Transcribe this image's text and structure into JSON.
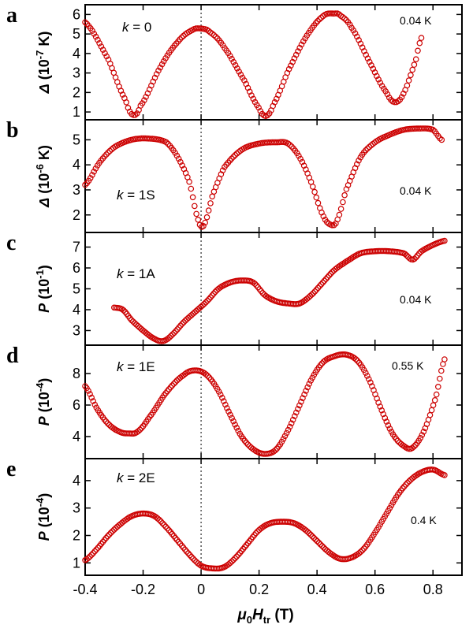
{
  "figure": {
    "x_axis_label": {
      "mu": "μ",
      "zero": "0",
      "H": "H",
      "sub": "tr",
      "unit": " (T)"
    }
  },
  "chart_data": [
    {
      "type": "scatter",
      "panel_letter": "a",
      "k_label": {
        "k": "k",
        "rest": " = 0"
      },
      "temperature": "0.04 K",
      "y_label": {
        "symbol": "Δ",
        "prefix": " (10",
        "exp": "-7",
        "suffix": " K)",
        "italic": true
      },
      "ylim": [
        0.6,
        6.5
      ],
      "yticks": [
        1,
        2,
        3,
        4,
        5,
        6
      ],
      "xlim": [
        -0.4,
        0.9
      ],
      "marker_color": "#cc0000",
      "series": [
        {
          "x": [
            -0.4,
            -0.32,
            -0.26,
            -0.235,
            -0.21,
            -0.14,
            -0.08,
            -0.03,
            0.0,
            0.03,
            0.08,
            0.15,
            0.2,
            0.225,
            0.25,
            0.3,
            0.36,
            0.42,
            0.46,
            0.48,
            0.52,
            0.58,
            0.64,
            0.67,
            0.7,
            0.74,
            0.76
          ],
          "y": [
            5.6,
            3.7,
            1.6,
            0.85,
            1.3,
            3.3,
            4.6,
            5.2,
            5.28,
            5.1,
            4.3,
            2.6,
            1.2,
            0.8,
            1.4,
            3.1,
            4.8,
            5.9,
            6.05,
            5.95,
            5.3,
            3.6,
            2.0,
            1.5,
            2.0,
            3.6,
            4.8
          ]
        }
      ]
    },
    {
      "type": "scatter",
      "panel_letter": "b",
      "k_label": {
        "k": "k",
        "rest": " = 1S"
      },
      "temperature": "0.04 K",
      "y_label": {
        "symbol": "Δ",
        "prefix": " (10",
        "exp": "-6",
        "suffix": " K)",
        "italic": true
      },
      "ylim": [
        1.3,
        5.8
      ],
      "yticks": [
        2,
        3,
        4,
        5
      ],
      "xlim": [
        -0.4,
        0.9
      ],
      "marker_color": "#cc0000",
      "series": [
        {
          "x": [
            -0.4,
            -0.35,
            -0.3,
            -0.24,
            -0.18,
            -0.12,
            -0.08,
            -0.04,
            -0.01,
            0.01,
            0.04,
            0.08,
            0.14,
            0.2,
            0.26,
            0.3,
            0.34,
            0.38,
            0.42,
            0.45,
            0.47,
            0.5,
            0.55,
            0.6,
            0.65,
            0.7,
            0.75,
            0.8,
            0.83
          ],
          "y": [
            3.2,
            4.1,
            4.7,
            5.0,
            5.05,
            4.9,
            4.3,
            3.3,
            1.8,
            1.6,
            2.8,
            3.9,
            4.6,
            4.85,
            4.9,
            4.85,
            4.3,
            3.3,
            2.0,
            1.6,
            1.8,
            3.0,
            4.3,
            4.9,
            5.2,
            5.4,
            5.45,
            5.4,
            5.0
          ]
        }
      ]
    },
    {
      "type": "scatter",
      "panel_letter": "c",
      "k_label": {
        "k": "k",
        "rest": " = 1A"
      },
      "temperature": "0.04 K",
      "y_label": {
        "symbol": "P",
        "prefix": " (10",
        "exp": "-1",
        "suffix": ")",
        "italic": true
      },
      "ylim": [
        2.3,
        7.7
      ],
      "yticks": [
        3,
        4,
        5,
        6,
        7
      ],
      "xlim": [
        -0.4,
        0.9
      ],
      "marker_color": "#cc0000",
      "series": [
        {
          "x": [
            -0.3,
            -0.27,
            -0.24,
            -0.2,
            -0.16,
            -0.13,
            -0.1,
            -0.06,
            -0.02,
            0.02,
            0.06,
            0.1,
            0.14,
            0.18,
            0.22,
            0.26,
            0.3,
            0.34,
            0.38,
            0.42,
            0.46,
            0.5,
            0.55,
            0.6,
            0.65,
            0.7,
            0.73,
            0.76,
            0.8,
            0.84
          ],
          "y": [
            4.1,
            4.0,
            3.5,
            3.0,
            2.6,
            2.5,
            2.8,
            3.4,
            3.9,
            4.4,
            5.0,
            5.3,
            5.4,
            5.3,
            4.7,
            4.4,
            4.3,
            4.3,
            4.7,
            5.3,
            5.9,
            6.3,
            6.7,
            6.8,
            6.8,
            6.7,
            6.4,
            6.8,
            7.1,
            7.3
          ]
        }
      ]
    },
    {
      "type": "scatter",
      "panel_letter": "d",
      "k_label": {
        "k": "k",
        "rest": " = 1E"
      },
      "temperature": "0.55 K",
      "y_label": {
        "symbol": "P",
        "prefix": " (10",
        "exp": "-4",
        "suffix": ")",
        "italic": true
      },
      "ylim": [
        2.6,
        9.8
      ],
      "yticks": [
        4,
        6,
        8
      ],
      "xlim": [
        -0.4,
        0.9
      ],
      "marker_color": "#cc0000",
      "series": [
        {
          "x": [
            -0.4,
            -0.36,
            -0.32,
            -0.28,
            -0.25,
            -0.22,
            -0.18,
            -0.12,
            -0.06,
            -0.02,
            0.02,
            0.06,
            0.1,
            0.14,
            0.18,
            0.22,
            0.26,
            0.3,
            0.34,
            0.38,
            0.42,
            0.46,
            0.5,
            0.54,
            0.58,
            0.62,
            0.66,
            0.7,
            0.73,
            0.77,
            0.81,
            0.84
          ],
          "y": [
            7.2,
            5.8,
            4.8,
            4.3,
            4.2,
            4.3,
            5.2,
            6.8,
            7.9,
            8.2,
            7.9,
            6.9,
            5.4,
            4.0,
            3.2,
            2.9,
            3.2,
            4.4,
            6.0,
            7.6,
            8.7,
            9.1,
            9.2,
            8.8,
            7.6,
            5.8,
            4.2,
            3.4,
            3.3,
            4.4,
            6.5,
            8.9
          ]
        }
      ]
    },
    {
      "type": "scatter",
      "panel_letter": "e",
      "k_label": {
        "k": "k",
        "rest": " = 2E"
      },
      "temperature": "0.4 K",
      "y_label": {
        "symbol": "P",
        "prefix": " (10",
        "exp": "-4",
        "suffix": ")",
        "italic": true
      },
      "ylim": [
        0.55,
        4.8
      ],
      "yticks": [
        1,
        2,
        3,
        4
      ],
      "xlim": [
        -0.4,
        0.9
      ],
      "x_tick_values": [
        -0.4,
        -0.2,
        0,
        0.2,
        0.4,
        0.6,
        0.8
      ],
      "x_tick_labels": [
        "-0.4",
        "-0.2",
        "0",
        "0.2",
        "0.4",
        "0.6",
        "0.8"
      ],
      "marker_color": "#cc0000",
      "series": [
        {
          "x": [
            -0.4,
            -0.36,
            -0.32,
            -0.28,
            -0.24,
            -0.2,
            -0.16,
            -0.12,
            -0.08,
            -0.04,
            0.0,
            0.04,
            0.08,
            0.12,
            0.16,
            0.2,
            0.24,
            0.28,
            0.32,
            0.36,
            0.4,
            0.44,
            0.48,
            0.52,
            0.56,
            0.6,
            0.64,
            0.68,
            0.72,
            0.76,
            0.8,
            0.84
          ],
          "y": [
            1.1,
            1.5,
            2.0,
            2.4,
            2.7,
            2.8,
            2.7,
            2.3,
            1.8,
            1.3,
            0.9,
            0.8,
            0.85,
            1.2,
            1.7,
            2.2,
            2.45,
            2.5,
            2.45,
            2.2,
            1.8,
            1.4,
            1.15,
            1.2,
            1.5,
            2.1,
            2.8,
            3.5,
            4.0,
            4.3,
            4.4,
            4.2
          ]
        }
      ]
    }
  ]
}
